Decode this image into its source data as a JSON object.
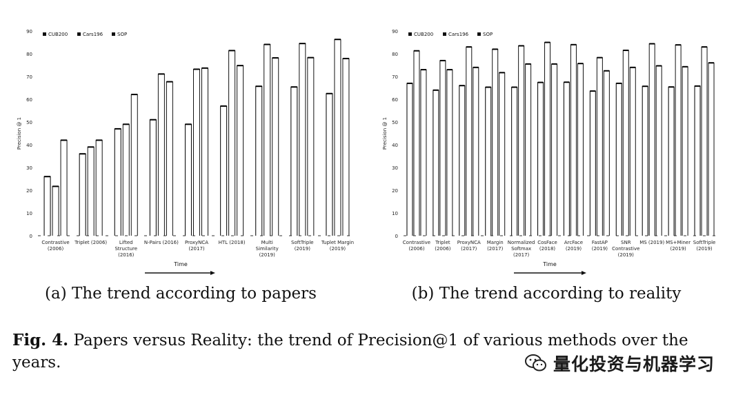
{
  "chart_data": [
    {
      "id": "a",
      "type": "bar",
      "ylabel": "Precision @ 1",
      "xlabel": "Time",
      "ylim": [
        0,
        90
      ],
      "yticks": [
        0,
        10,
        20,
        30,
        40,
        50,
        60,
        70,
        80,
        90
      ],
      "legend_position": "top-left",
      "subcaption": "(a) The trend according to papers",
      "categories": [
        [
          "Contrastive",
          "(2006)"
        ],
        [
          "Triplet (2006)"
        ],
        [
          "Lifted",
          "Structure",
          "(2016)"
        ],
        [
          "N-Pairs (2016)"
        ],
        [
          "ProxyNCA",
          "(2017)"
        ],
        [
          "HTL (2018)"
        ],
        [
          "Multi",
          "Similarity",
          "(2019)"
        ],
        [
          "SoftTriple",
          "(2019)"
        ],
        [
          "Tuplet Margin",
          "(2019)"
        ]
      ],
      "series": [
        {
          "name": "CUB200",
          "values": [
            26,
            36,
            47,
            51,
            49,
            57,
            65.7,
            65.4,
            62.5
          ]
        },
        {
          "name": "Cars196",
          "values": [
            21.7,
            39,
            49,
            71.1,
            73.2,
            81.4,
            84.1,
            84.5,
            86.3
          ]
        },
        {
          "name": "SOP",
          "values": [
            42,
            42,
            62.1,
            67.7,
            73.7,
            74.8,
            78.2,
            78.3,
            77.9
          ]
        }
      ]
    },
    {
      "id": "b",
      "type": "bar",
      "ylabel": "Precision @ 1",
      "xlabel": "Time",
      "ylim": [
        0,
        90
      ],
      "yticks": [
        0,
        10,
        20,
        30,
        40,
        50,
        60,
        70,
        80,
        90
      ],
      "legend_position": "top-left",
      "subcaption": "(b) The trend according to reality",
      "categories": [
        [
          "Contrastive",
          "(2006)"
        ],
        [
          "Triplet",
          "(2006)"
        ],
        [
          "ProxyNCA",
          "(2017)"
        ],
        [
          "Margin",
          "(2017)"
        ],
        [
          "Normalized",
          "Softmax",
          "(2017)"
        ],
        [
          "CosFace",
          "(2018)"
        ],
        [
          "ArcFace",
          "(2019)"
        ],
        [
          "FastAP",
          "(2019)"
        ],
        [
          "SNR",
          "Contrastive",
          "(2019)"
        ],
        [
          "MS (2019)"
        ],
        [
          "MS+Miner",
          "(2019)"
        ],
        [
          "SoftTriple",
          "(2019)"
        ]
      ],
      "series": [
        {
          "name": "CUB200",
          "values": [
            67,
            64,
            66,
            65.3,
            65.3,
            67.4,
            67.5,
            63.6,
            67,
            65.7,
            65.4,
            65.8
          ]
        },
        {
          "name": "Cars196",
          "values": [
            81.3,
            77,
            83,
            82,
            83.5,
            85,
            84,
            78.3,
            81.5,
            84.4,
            83.9,
            83
          ]
        },
        {
          "name": "SOP",
          "values": [
            73,
            73,
            74,
            71.7,
            75.5,
            75.5,
            75.7,
            72.5,
            74,
            74.7,
            74.3,
            76
          ]
        }
      ]
    }
  ],
  "figure_caption": {
    "label": "Fig. 4.",
    "text": "Papers versus Reality: the trend of Precision@1 of various methods over the years."
  },
  "watermark": {
    "text": "量化投资与机器学习",
    "icon": "wechat-icon"
  }
}
